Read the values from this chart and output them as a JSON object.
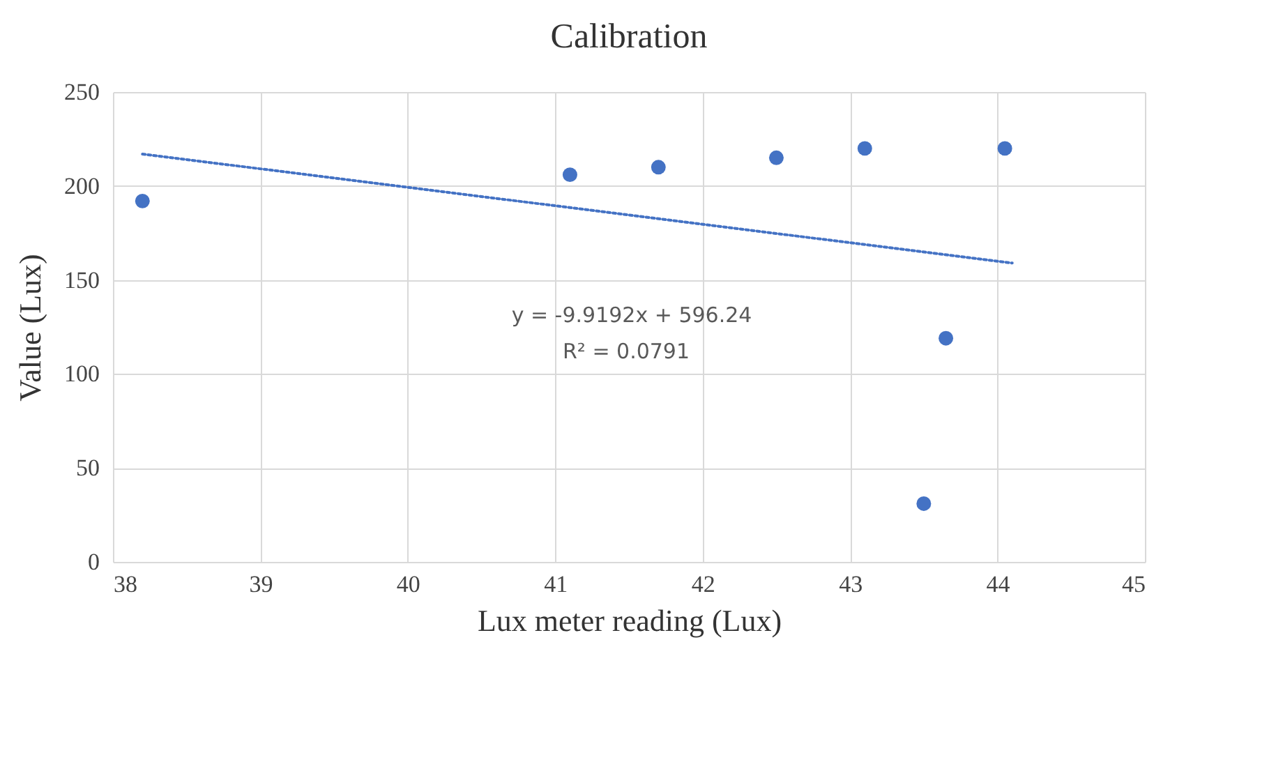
{
  "chart_data": {
    "type": "scatter",
    "title": "Calibration",
    "xlabel": "Lux meter reading (Lux)",
    "ylabel": "Value (Lux)",
    "x": [
      38.2,
      41.1,
      41.7,
      42.5,
      43.1,
      44.05,
      43.65,
      43.5
    ],
    "series": [
      {
        "color": "#4472c4",
        "values": [
          192,
          206,
          210,
          215,
          220,
          220,
          119,
          31
        ],
        "marker": "circle"
      },
      {
        "type": "line",
        "color": "#4472c4",
        "line_style": "dotted",
        "x": [
          38.2,
          44.1
        ],
        "values": [
          217,
          159
        ]
      }
    ],
    "xlim": [
      38,
      45
    ],
    "xticks": [
      38,
      39,
      40,
      41,
      42,
      43,
      44,
      45
    ],
    "ylim": [
      0,
      250
    ],
    "yticks": [
      0,
      50,
      100,
      150,
      200,
      250
    ],
    "grid": true,
    "annotations": [
      "y = -9.9192x + 596.24",
      "R² = 0.0791"
    ]
  }
}
